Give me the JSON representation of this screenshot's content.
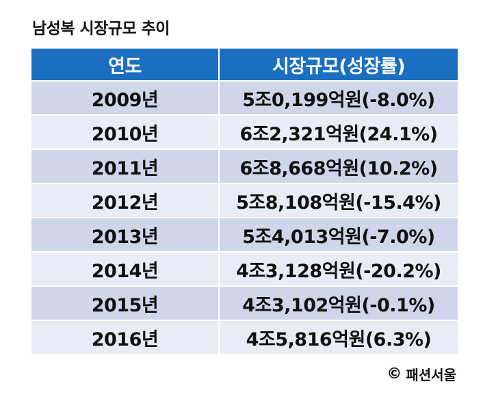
{
  "title": "남성복 시장규모 추이",
  "table": {
    "headers": [
      "연도",
      "시장규모(성장률)"
    ],
    "rows": [
      {
        "year": "2009년",
        "size": "5조0,199억원(-8.0%)"
      },
      {
        "year": "2010년",
        "size": "6조2,321억원(24.1%)"
      },
      {
        "year": "2011년",
        "size": "6조8,668억원(10.2%)"
      },
      {
        "year": "2012년",
        "size": "5조8,108억원(-15.4%)"
      },
      {
        "year": "2013년",
        "size": "5조4,013억원(-7.0%)"
      },
      {
        "year": "2014년",
        "size": "4조3,128억원(-20.2%)"
      },
      {
        "year": "2015년",
        "size": "4조3,102억원(-0.1%)"
      },
      {
        "year": "2016년",
        "size": "4조5,816억원(6.3%)"
      }
    ]
  },
  "source": {
    "icon": "copyright-icon",
    "symbol": "©",
    "text": "패션서울"
  },
  "colors": {
    "header_bg": "#1a6fc0",
    "row_dark": "#cfd6ea",
    "row_light": "#e9ecf6"
  }
}
